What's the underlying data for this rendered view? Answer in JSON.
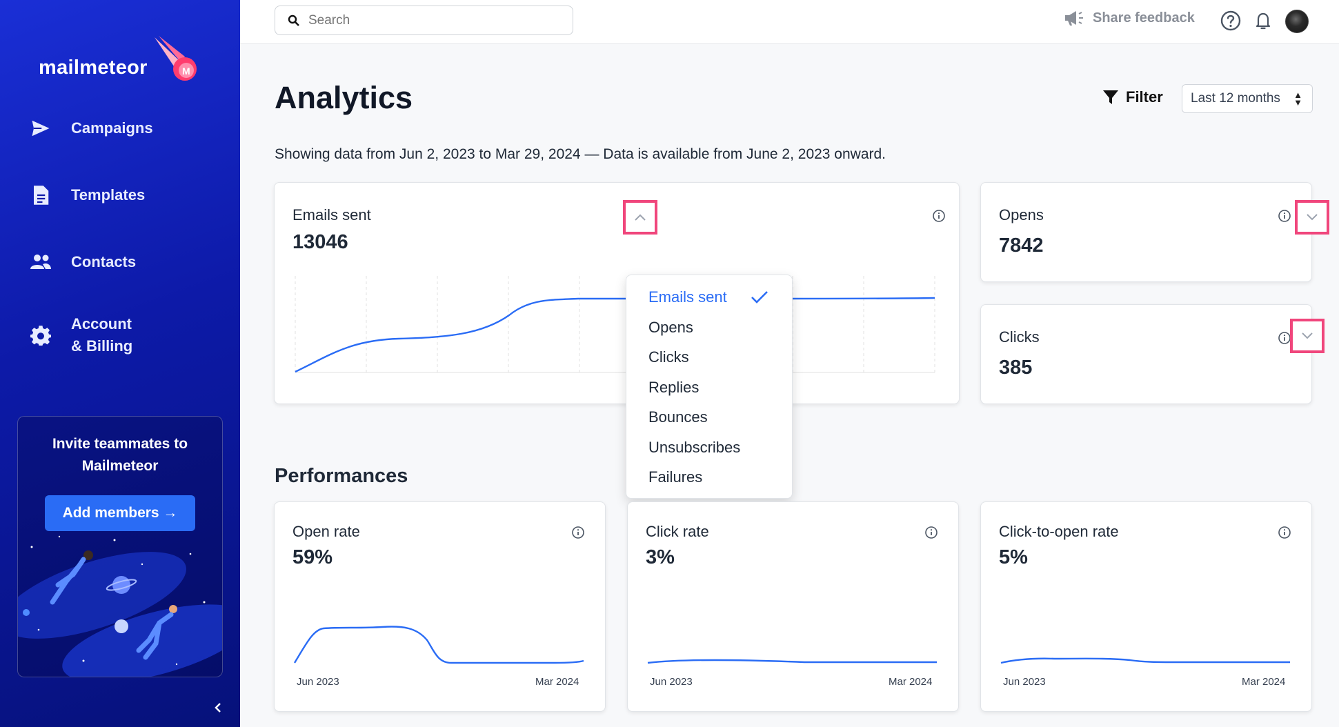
{
  "sidebar": {
    "logo_text": "mailmeteor",
    "nav": [
      {
        "label": "Campaigns",
        "icon": "send-icon"
      },
      {
        "label": "Templates",
        "icon": "document-icon"
      },
      {
        "label": "Contacts",
        "icon": "people-icon"
      },
      {
        "label_line1": "Account",
        "label_line2": "& Billing",
        "icon": "gear-icon"
      }
    ],
    "invite": {
      "title": "Invite teammates to Mailmeteor",
      "button": "Add members →"
    }
  },
  "topbar": {
    "search_placeholder": "Search",
    "feedback_label": "Share feedback"
  },
  "page": {
    "title": "Analytics",
    "filter_label": "Filter",
    "period": "Last 12 months",
    "subtitle": "Showing data from Jun 2, 2023 to Mar 29, 2024 — Data is available from June 2, 2023 onward."
  },
  "metrics": {
    "main": {
      "label": "Emails sent",
      "value": "13046"
    },
    "opens": {
      "label": "Opens",
      "value": "7842"
    },
    "clicks": {
      "label": "Clicks",
      "value": "385"
    }
  },
  "dropdown": {
    "items": [
      "Emails sent",
      "Opens",
      "Clicks",
      "Replies",
      "Bounces",
      "Unsubscribes",
      "Failures"
    ],
    "selected": "Emails sent"
  },
  "performances": {
    "title": "Performances",
    "cards": [
      {
        "label": "Open rate",
        "value": "59%",
        "x_start": "Jun 2023",
        "x_end": "Mar 2024"
      },
      {
        "label": "Click rate",
        "value": "3%",
        "x_start": "Jun 2023",
        "x_end": "Mar 2024"
      },
      {
        "label": "Click-to-open rate",
        "value": "5%",
        "x_start": "Jun 2023",
        "x_end": "Mar 2024"
      }
    ]
  },
  "colors": {
    "accent": "#2a6cf5",
    "highlight": "#f0467c",
    "sidebar": "#0d1aa8",
    "line": "#2a6cf5"
  }
}
